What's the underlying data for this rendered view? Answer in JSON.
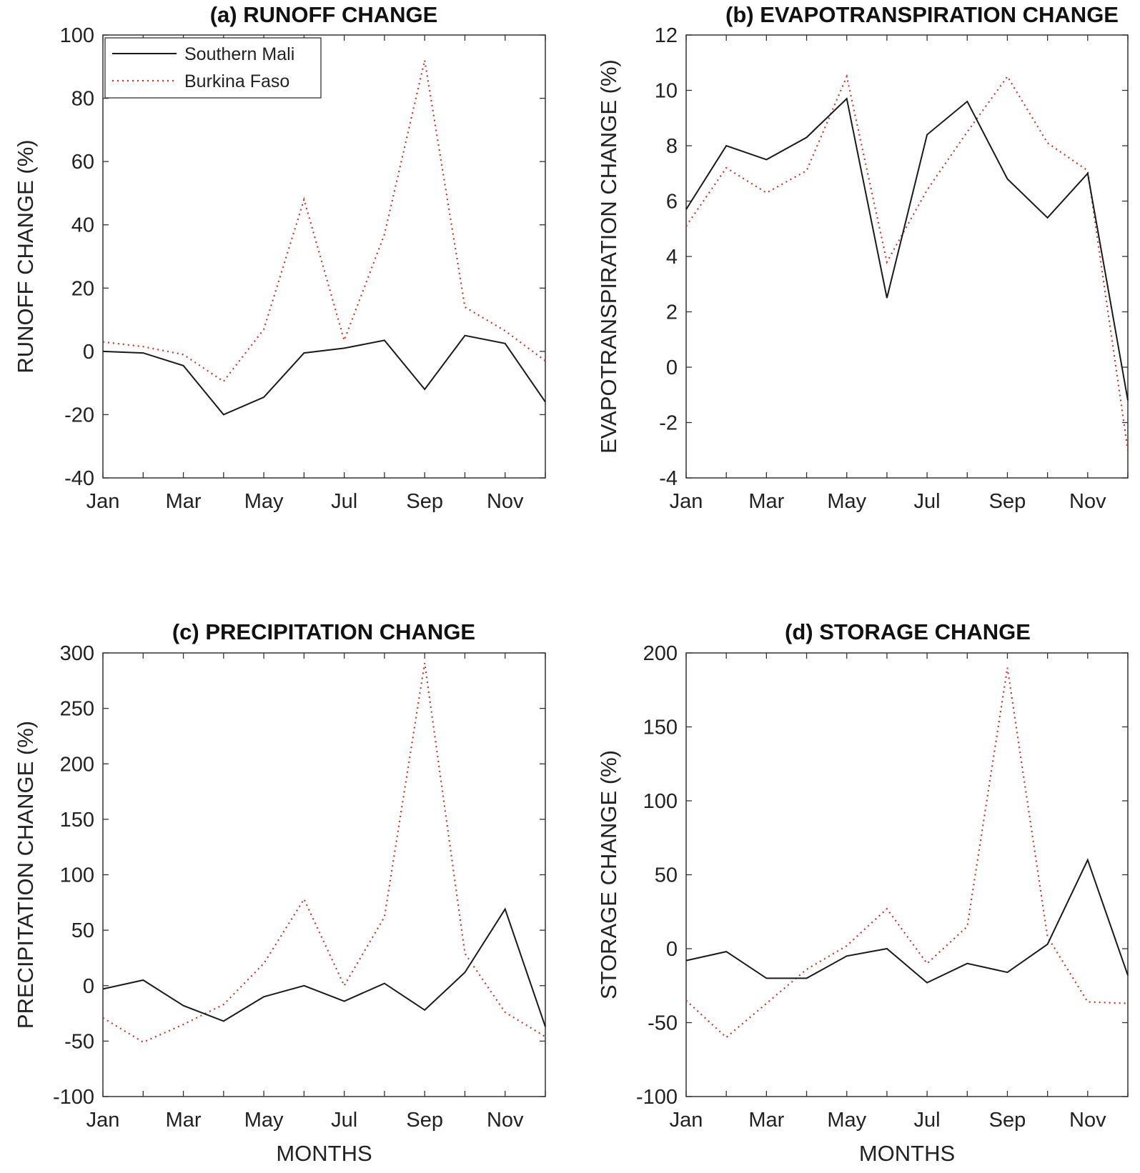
{
  "legend": {
    "entries": [
      {
        "name": "Southern Mali",
        "style": "solid",
        "color": "#1a1a1a"
      },
      {
        "name": "Burkina Faso",
        "style": "dotted",
        "color": "#c0392b"
      }
    ]
  },
  "chart_data": [
    {
      "type": "line",
      "title": "(a) RUNOFF CHANGE",
      "xlabel": "",
      "ylabel": "RUNOFF CHANGE (%)",
      "ylim": [
        -40,
        100
      ],
      "yticks": [
        -40,
        -20,
        0,
        20,
        40,
        60,
        80,
        100
      ],
      "xticklabels": [
        "Jan",
        "Mar",
        "May",
        "Jul",
        "Sep",
        "Nov"
      ],
      "legend_position": "top-left",
      "categories": [
        "Jan",
        "Feb",
        "Mar",
        "Apr",
        "May",
        "Jun",
        "Jul",
        "Aug",
        "Sep",
        "Oct",
        "Nov",
        "Dec"
      ],
      "series": [
        {
          "name": "Southern Mali",
          "values": [
            0,
            -0.5,
            -4.5,
            -20,
            -14.5,
            -0.5,
            1,
            3.5,
            -12,
            5,
            2.5,
            -16
          ]
        },
        {
          "name": "Burkina Faso",
          "values": [
            3,
            1.5,
            -1,
            -9.5,
            7,
            48,
            3.5,
            37,
            92,
            14,
            6.5,
            -3
          ]
        }
      ]
    },
    {
      "type": "line",
      "title": "(b) EVAPOTRANSPIRATION CHANGE",
      "xlabel": "",
      "ylabel": "EVAPOTRANSPIRATION CHANGE (%)",
      "ylim": [
        -4,
        12
      ],
      "yticks": [
        -4,
        -2,
        0,
        2,
        4,
        6,
        8,
        10,
        12
      ],
      "xticklabels": [
        "Jan",
        "Mar",
        "May",
        "Jul",
        "Sep",
        "Nov"
      ],
      "categories": [
        "Jan",
        "Feb",
        "Mar",
        "Apr",
        "May",
        "Jun",
        "Jul",
        "Aug",
        "Sep",
        "Oct",
        "Nov",
        "Dec"
      ],
      "series": [
        {
          "name": "Southern Mali",
          "values": [
            5.7,
            8,
            7.5,
            8.3,
            9.7,
            2.5,
            8.4,
            9.6,
            6.8,
            5.4,
            7,
            -1.2
          ]
        },
        {
          "name": "Burkina Faso",
          "values": [
            5.1,
            7.2,
            6.3,
            7.1,
            10.5,
            3.8,
            6.4,
            8.5,
            10.5,
            8.1,
            7.1,
            -3
          ]
        }
      ]
    },
    {
      "type": "line",
      "title": "(c) PRECIPITATION CHANGE",
      "xlabel": "MONTHS",
      "ylabel": "PRECIPITATION CHANGE (%)",
      "ylim": [
        -100,
        300
      ],
      "yticks": [
        -100,
        -50,
        0,
        50,
        100,
        150,
        200,
        250,
        300
      ],
      "xticklabels": [
        "Jan",
        "Mar",
        "May",
        "Jul",
        "Sep",
        "Nov"
      ],
      "categories": [
        "Jan",
        "Feb",
        "Mar",
        "Apr",
        "May",
        "Jun",
        "Jul",
        "Aug",
        "Sep",
        "Oct",
        "Nov",
        "Dec"
      ],
      "series": [
        {
          "name": "Southern Mali",
          "values": [
            -3,
            5,
            -18,
            -32,
            -10,
            0,
            -14,
            2,
            -22,
            12,
            69,
            -37
          ]
        },
        {
          "name": "Burkina Faso",
          "values": [
            -29,
            -51,
            -35,
            -17,
            20,
            78,
            0,
            62,
            291,
            29,
            -24,
            -46
          ]
        }
      ]
    },
    {
      "type": "line",
      "title": "(d) STORAGE CHANGE",
      "xlabel": "MONTHS",
      "ylabel": "STORAGE CHANGE (%)",
      "ylim": [
        -100,
        200
      ],
      "yticks": [
        -100,
        -50,
        0,
        50,
        100,
        150,
        200
      ],
      "xticklabels": [
        "Jan",
        "Mar",
        "May",
        "Jul",
        "Sep",
        "Nov"
      ],
      "categories": [
        "Jan",
        "Feb",
        "Mar",
        "Apr",
        "May",
        "Jun",
        "Jul",
        "Aug",
        "Sep",
        "Oct",
        "Nov",
        "Dec"
      ],
      "series": [
        {
          "name": "Southern Mali",
          "values": [
            -8,
            -2,
            -20,
            -20,
            -5,
            0,
            -23,
            -10,
            -16,
            3,
            60,
            -18
          ]
        },
        {
          "name": "Burkina Faso",
          "values": [
            -35,
            -60,
            -37,
            -14,
            2,
            27,
            -10,
            15,
            190,
            8,
            -36,
            -37
          ]
        }
      ]
    }
  ]
}
